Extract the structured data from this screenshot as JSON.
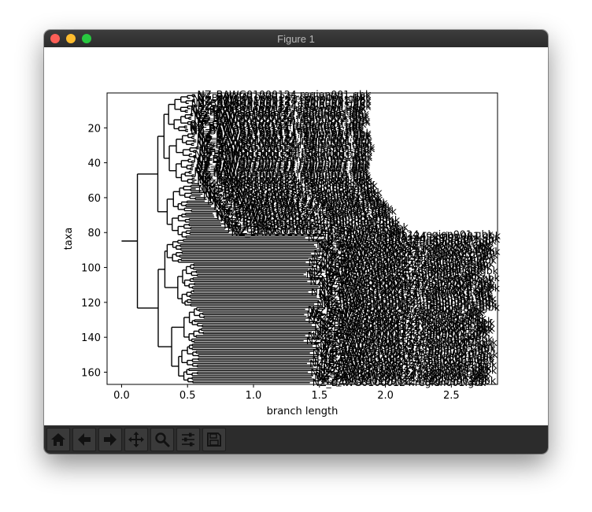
{
  "window": {
    "title": "Figure 1"
  },
  "toolbar": {
    "buttons": [
      {
        "name": "home",
        "icon": "home-icon"
      },
      {
        "name": "back",
        "icon": "arrow-left-icon"
      },
      {
        "name": "forward",
        "icon": "arrow-right-icon"
      },
      {
        "name": "pan",
        "icon": "move-icon"
      },
      {
        "name": "zoom",
        "icon": "search-icon"
      },
      {
        "name": "configure",
        "icon": "sliders-icon"
      },
      {
        "name": "save",
        "icon": "save-icon"
      }
    ]
  },
  "chart_data": {
    "type": "tree",
    "xlabel": "branch length",
    "ylabel": "taxa",
    "xlim": [
      -0.11,
      2.85
    ],
    "ylim": [
      167,
      0
    ],
    "x_ticks": [
      0.0,
      0.5,
      1.0,
      1.5,
      2.0,
      2.5
    ],
    "x_tick_labels": [
      "0.0",
      "0.5",
      "1.0",
      "1.5",
      "2.0",
      "2.5"
    ],
    "y_ticks": [
      20,
      40,
      60,
      80,
      100,
      120,
      140,
      160
    ],
    "y_tick_labels": [
      "20",
      "40",
      "60",
      "80",
      "100",
      "120",
      "140",
      "160"
    ],
    "leaf_count": 166,
    "leaf_label_examples": [
      "NZ_BAWG01000124.region001.gbk",
      "2.gbk"
    ],
    "line_color": "#000000"
  }
}
